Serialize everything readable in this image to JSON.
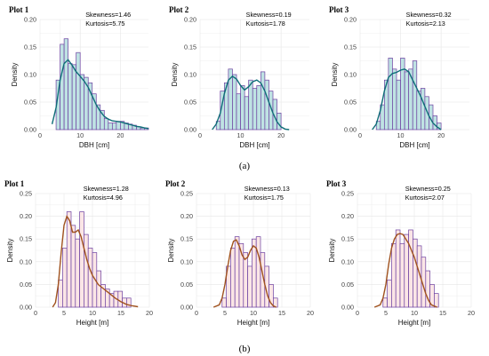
{
  "captions": [
    "(a)",
    "(b)"
  ],
  "colors": {
    "dbh_fill": "#bfe3e3",
    "dbh_bar_stroke": "#6b3fa0",
    "dbh_curve": "#0f6e78",
    "height_fill": "#fbe6e6",
    "height_bar_stroke": "#6b3fa0",
    "height_curve": "#a0521e",
    "grid": "#e6e6e6"
  },
  "chart_data": [
    {
      "type": "bar",
      "title": "Plot 1",
      "xlabel": "DBH [cm]",
      "ylabel": "Density",
      "xlim": [
        0,
        27
      ],
      "ylim": [
        0,
        0.2
      ],
      "xticks": [
        0,
        10,
        20
      ],
      "yticks": [
        0.0,
        0.05,
        0.1,
        0.15,
        0.2
      ],
      "stats": [
        "Skewness=1.46",
        "Kurtosis=5.75"
      ],
      "bin_width": 1,
      "bin_start": 4,
      "values": [
        0.09,
        0.155,
        0.165,
        0.12,
        0.118,
        0.14,
        0.1,
        0.095,
        0.085,
        0.065,
        0.045,
        0.035,
        0.02,
        0.012,
        0.012,
        0.015,
        0.015,
        0.012,
        0.01,
        0.008,
        0.005,
        0.003,
        0.003
      ],
      "density": [
        [
          3,
          0.01
        ],
        [
          4,
          0.04
        ],
        [
          5,
          0.09
        ],
        [
          6,
          0.12
        ],
        [
          7,
          0.127
        ],
        [
          8,
          0.117
        ],
        [
          9,
          0.105
        ],
        [
          10,
          0.097
        ],
        [
          11,
          0.088
        ],
        [
          12,
          0.077
        ],
        [
          13,
          0.061
        ],
        [
          14,
          0.045
        ],
        [
          15,
          0.033
        ],
        [
          16,
          0.024
        ],
        [
          17,
          0.019
        ],
        [
          18,
          0.016
        ],
        [
          19,
          0.015
        ],
        [
          20,
          0.014
        ],
        [
          21,
          0.012
        ],
        [
          22,
          0.01
        ],
        [
          23,
          0.008
        ],
        [
          24,
          0.006
        ],
        [
          25,
          0.005
        ],
        [
          26,
          0.003
        ],
        [
          27,
          0.002
        ]
      ]
    },
    {
      "type": "bar",
      "title": "Plot 2",
      "xlabel": "DBH [cm]",
      "ylabel": "Density",
      "xlim": [
        0,
        27
      ],
      "ylim": [
        0,
        0.2
      ],
      "xticks": [
        0,
        10,
        20
      ],
      "yticks": [
        0.0,
        0.05,
        0.1,
        0.15,
        0.2
      ],
      "stats": [
        "Skewness=0.19",
        "Kurtosis=1.78"
      ],
      "bin_width": 1,
      "bin_start": 4,
      "values": [
        0.015,
        0.07,
        0.085,
        0.11,
        0.1,
        0.065,
        0.08,
        0.06,
        0.09,
        0.075,
        0.08,
        0.105,
        0.09,
        0.07,
        0.055,
        0.03
      ],
      "density": [
        [
          3,
          0.0
        ],
        [
          4,
          0.01
        ],
        [
          5,
          0.03
        ],
        [
          6,
          0.065
        ],
        [
          7,
          0.09
        ],
        [
          8,
          0.097
        ],
        [
          9,
          0.092
        ],
        [
          10,
          0.08
        ],
        [
          11,
          0.072
        ],
        [
          12,
          0.078
        ],
        [
          13,
          0.087
        ],
        [
          14,
          0.09
        ],
        [
          15,
          0.085
        ],
        [
          16,
          0.07
        ],
        [
          17,
          0.05
        ],
        [
          18,
          0.03
        ],
        [
          19,
          0.014
        ],
        [
          20,
          0.005
        ],
        [
          21,
          0.001
        ],
        [
          22,
          0.0
        ]
      ]
    },
    {
      "type": "bar",
      "title": "Plot 3",
      "xlabel": "DBH [cm]",
      "ylabel": "Density",
      "xlim": [
        0,
        27
      ],
      "ylim": [
        0,
        0.2
      ],
      "xticks": [
        0,
        10,
        20
      ],
      "yticks": [
        0.0,
        0.05,
        0.1,
        0.15,
        0.2
      ],
      "stats": [
        "Skewness=0.32",
        "Kurtosis=2.13"
      ],
      "bin_width": 1,
      "bin_start": 4,
      "values": [
        0.015,
        0.045,
        0.09,
        0.13,
        0.11,
        0.09,
        0.13,
        0.105,
        0.11,
        0.125,
        0.07,
        0.075,
        0.06,
        0.045,
        0.025,
        0.012
      ],
      "density": [
        [
          3,
          0.0
        ],
        [
          4,
          0.01
        ],
        [
          5,
          0.035
        ],
        [
          6,
          0.07
        ],
        [
          7,
          0.095
        ],
        [
          8,
          0.102
        ],
        [
          9,
          0.104
        ],
        [
          10,
          0.108
        ],
        [
          11,
          0.11
        ],
        [
          12,
          0.105
        ],
        [
          13,
          0.09
        ],
        [
          14,
          0.075
        ],
        [
          15,
          0.06
        ],
        [
          16,
          0.042
        ],
        [
          17,
          0.025
        ],
        [
          18,
          0.012
        ],
        [
          19,
          0.005
        ],
        [
          20,
          0.0
        ]
      ]
    },
    {
      "type": "bar",
      "title": "Plot 1",
      "xlabel": "Height [m]",
      "ylabel": "Density",
      "xlim": [
        0,
        20
      ],
      "ylim": [
        0,
        0.25
      ],
      "xticks": [
        0,
        5,
        10,
        15,
        20
      ],
      "yticks": [
        0.0,
        0.05,
        0.1,
        0.15,
        0.2,
        0.25
      ],
      "stats": [
        "Skewness=1.28",
        "Kurtosis=4.96"
      ],
      "bin_width": 0.75,
      "bin_start": 4,
      "values": [
        0.06,
        0.13,
        0.21,
        0.18,
        0.15,
        0.21,
        0.16,
        0.13,
        0.12,
        0.08,
        0.05,
        0.04,
        0.03,
        0.035,
        0.035,
        0.02,
        0.02
      ],
      "density": [
        [
          3,
          0.0
        ],
        [
          3.5,
          0.01
        ],
        [
          4,
          0.05
        ],
        [
          4.5,
          0.12
        ],
        [
          5,
          0.18
        ],
        [
          5.5,
          0.2
        ],
        [
          6,
          0.19
        ],
        [
          6.5,
          0.165
        ],
        [
          7,
          0.165
        ],
        [
          7.5,
          0.17
        ],
        [
          8,
          0.155
        ],
        [
          8.5,
          0.13
        ],
        [
          9,
          0.105
        ],
        [
          9.5,
          0.085
        ],
        [
          10,
          0.07
        ],
        [
          10.5,
          0.06
        ],
        [
          11,
          0.05
        ],
        [
          11.5,
          0.045
        ],
        [
          12,
          0.04
        ],
        [
          12.5,
          0.035
        ],
        [
          13,
          0.03
        ],
        [
          13.5,
          0.025
        ],
        [
          14,
          0.02
        ],
        [
          15,
          0.012
        ],
        [
          16,
          0.006
        ],
        [
          17,
          0.003
        ],
        [
          18,
          0.001
        ]
      ]
    },
    {
      "type": "bar",
      "title": "Plot 2",
      "xlabel": "Height [m]",
      "ylabel": "Density",
      "xlim": [
        0,
        20
      ],
      "ylim": [
        0,
        0.25
      ],
      "xticks": [
        0,
        5,
        10,
        15,
        20
      ],
      "yticks": [
        0.0,
        0.05,
        0.1,
        0.15,
        0.2,
        0.25
      ],
      "stats": [
        "Skewness=0.13",
        "Kurtosis=1.75"
      ],
      "bin_width": 0.75,
      "bin_start": 4.5,
      "values": [
        0.02,
        0.09,
        0.13,
        0.155,
        0.14,
        0.12,
        0.09,
        0.15,
        0.155,
        0.12,
        0.09,
        0.05,
        0.02
      ],
      "density": [
        [
          3,
          0.0
        ],
        [
          4,
          0.005
        ],
        [
          4.5,
          0.02
        ],
        [
          5,
          0.05
        ],
        [
          5.5,
          0.09
        ],
        [
          6,
          0.125
        ],
        [
          6.5,
          0.145
        ],
        [
          7,
          0.148
        ],
        [
          7.5,
          0.135
        ],
        [
          8,
          0.115
        ],
        [
          8.5,
          0.105
        ],
        [
          9,
          0.11
        ],
        [
          9.5,
          0.125
        ],
        [
          10,
          0.135
        ],
        [
          10.5,
          0.13
        ],
        [
          11,
          0.11
        ],
        [
          11.5,
          0.08
        ],
        [
          12,
          0.05
        ],
        [
          12.5,
          0.025
        ],
        [
          13,
          0.01
        ],
        [
          13.5,
          0.003
        ],
        [
          14,
          0.0
        ]
      ]
    },
    {
      "type": "bar",
      "title": "Plot 3",
      "xlabel": "Height [m]",
      "ylabel": "Density",
      "xlim": [
        0,
        20
      ],
      "ylim": [
        0,
        0.25
      ],
      "xticks": [
        0,
        5,
        10,
        15,
        20
      ],
      "yticks": [
        0.0,
        0.05,
        0.1,
        0.15,
        0.2,
        0.25
      ],
      "stats": [
        "Skewness=0.25",
        "Kurtosis=2.07"
      ],
      "bin_width": 0.75,
      "bin_start": 4.5,
      "values": [
        0.02,
        0.06,
        0.14,
        0.17,
        0.14,
        0.16,
        0.17,
        0.15,
        0.135,
        0.11,
        0.08,
        0.05,
        0.03
      ],
      "density": [
        [
          3,
          0.0
        ],
        [
          4,
          0.005
        ],
        [
          4.5,
          0.02
        ],
        [
          5,
          0.05
        ],
        [
          5.5,
          0.095
        ],
        [
          6,
          0.13
        ],
        [
          6.5,
          0.15
        ],
        [
          7,
          0.16
        ],
        [
          7.5,
          0.162
        ],
        [
          8,
          0.16
        ],
        [
          8.5,
          0.15
        ],
        [
          9,
          0.14
        ],
        [
          9.5,
          0.125
        ],
        [
          10,
          0.11
        ],
        [
          10.5,
          0.09
        ],
        [
          11,
          0.07
        ],
        [
          11.5,
          0.05
        ],
        [
          12,
          0.03
        ],
        [
          12.5,
          0.015
        ],
        [
          13,
          0.005
        ],
        [
          14,
          0.0
        ]
      ]
    }
  ]
}
